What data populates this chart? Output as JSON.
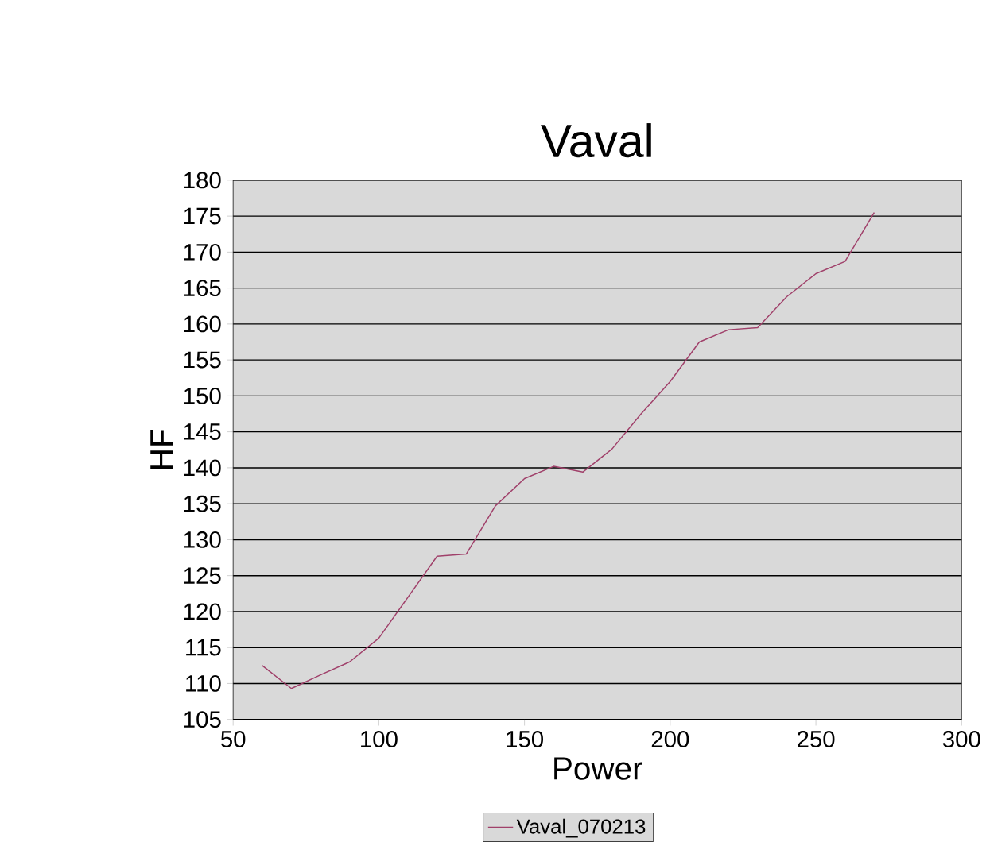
{
  "chart_data": {
    "type": "line",
    "title": "Vaval",
    "xlabel": "Power",
    "ylabel": "HF",
    "x": [
      60,
      70,
      80,
      90,
      100,
      110,
      120,
      130,
      140,
      150,
      160,
      170,
      180,
      190,
      200,
      210,
      220,
      230,
      240,
      250,
      260,
      270
    ],
    "series": [
      {
        "name": "Vaval_070213",
        "color": "#a0406a",
        "values": [
          112.5,
          109.3,
          111.2,
          113,
          116.3,
          122,
          127.7,
          128,
          134.7,
          138.5,
          140.2,
          139.4,
          142.6,
          147.5,
          152,
          157.5,
          159.2,
          159.5,
          163.8,
          167,
          168.7,
          175.5
        ]
      }
    ],
    "xlim": [
      50,
      300
    ],
    "xticks": [
      50,
      100,
      150,
      200,
      250,
      300
    ],
    "ylim": [
      105,
      180
    ],
    "yticks": [
      105,
      110,
      115,
      120,
      125,
      130,
      135,
      140,
      145,
      150,
      155,
      160,
      165,
      170,
      175,
      180
    ],
    "grid": "y",
    "legend": "bottom",
    "marker": "none",
    "line_style": "solid"
  }
}
